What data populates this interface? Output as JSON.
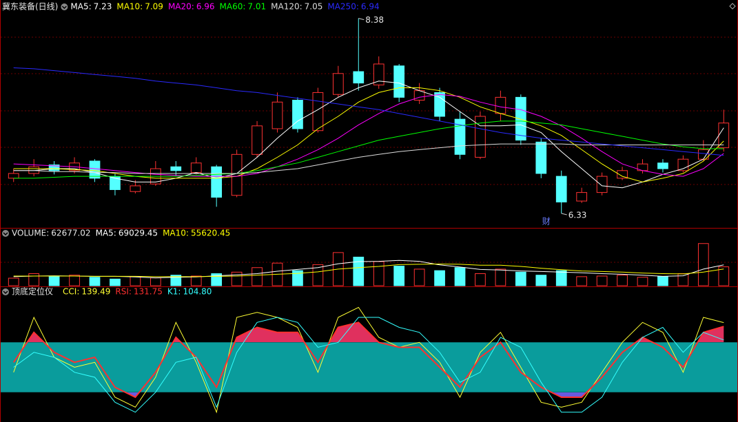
{
  "chart_data": [
    {
      "type": "candlestick",
      "title": "冀东装备(日线)",
      "marker": "财",
      "ylim": [
        6.2,
        8.5
      ],
      "up_color": "#ff3232",
      "down_color": "#54ffff",
      "open": [
        6.7,
        6.75,
        6.84,
        6.78,
        6.88,
        6.72,
        6.56,
        6.64,
        6.82,
        6.76,
        6.82,
        6.52,
        6.95,
        7.22,
        7.52,
        7.2,
        7.58,
        7.82,
        7.68,
        7.88,
        7.52,
        7.6,
        7.32,
        6.92,
        7.38,
        7.55,
        7.08,
        6.72,
        6.46,
        6.55,
        6.7,
        6.78,
        6.86,
        6.78,
        6.9,
        7.02
      ],
      "high": [
        6.8,
        6.9,
        6.88,
        6.92,
        6.9,
        6.75,
        6.68,
        6.88,
        6.88,
        6.92,
        6.84,
        7.0,
        7.3,
        7.6,
        7.55,
        7.65,
        7.88,
        8.38,
        7.98,
        7.9,
        7.7,
        7.65,
        7.4,
        7.4,
        7.62,
        7.58,
        7.12,
        6.78,
        6.6,
        6.76,
        6.82,
        6.9,
        6.9,
        6.94,
        7.1,
        7.42
      ],
      "low": [
        6.66,
        6.72,
        6.74,
        6.75,
        6.66,
        6.52,
        6.54,
        6.62,
        6.72,
        6.74,
        6.4,
        6.5,
        6.92,
        7.18,
        7.18,
        7.18,
        7.55,
        7.62,
        7.64,
        7.5,
        7.48,
        7.3,
        6.9,
        6.9,
        7.3,
        7.05,
        6.7,
        6.33,
        6.44,
        6.52,
        6.68,
        6.75,
        6.76,
        6.76,
        6.88,
        6.98
      ],
      "close": [
        6.75,
        6.82,
        6.78,
        6.86,
        6.7,
        6.58,
        6.62,
        6.8,
        6.78,
        6.86,
        6.5,
        6.95,
        7.25,
        7.5,
        7.22,
        7.6,
        7.8,
        7.7,
        7.9,
        7.55,
        7.62,
        7.35,
        6.95,
        7.35,
        7.55,
        7.1,
        6.75,
        6.45,
        6.55,
        6.72,
        6.78,
        6.85,
        6.8,
        6.9,
        7.0,
        7.28
      ],
      "series": [
        {
          "name": "MA5:",
          "color": "#ffffff",
          "values": [
            6.78,
            6.78,
            6.8,
            6.8,
            6.76,
            6.7,
            6.66,
            6.66,
            6.7,
            6.76,
            6.7,
            6.75,
            6.92,
            7.12,
            7.3,
            7.42,
            7.55,
            7.65,
            7.72,
            7.7,
            7.62,
            7.55,
            7.4,
            7.25,
            7.25,
            7.26,
            7.18,
            6.98,
            6.8,
            6.62,
            6.6,
            6.66,
            6.74,
            6.8,
            6.9,
            7.23
          ]
        },
        {
          "name": "MA10:",
          "color": "#ffff00",
          "values": [
            6.8,
            6.8,
            6.8,
            6.79,
            6.78,
            6.75,
            6.72,
            6.7,
            6.7,
            6.7,
            6.7,
            6.72,
            6.8,
            6.92,
            7.05,
            7.22,
            7.35,
            7.5,
            7.6,
            7.65,
            7.65,
            7.62,
            7.55,
            7.45,
            7.38,
            7.32,
            7.25,
            7.15,
            7.0,
            6.85,
            6.72,
            6.66,
            6.7,
            6.75,
            6.88,
            7.09
          ]
        },
        {
          "name": "MA20:",
          "color": "#ff00ff",
          "values": [
            6.85,
            6.84,
            6.83,
            6.82,
            6.8,
            6.78,
            6.76,
            6.74,
            6.73,
            6.72,
            6.72,
            6.72,
            6.75,
            6.82,
            6.9,
            7.0,
            7.12,
            7.26,
            7.38,
            7.48,
            7.55,
            7.58,
            7.56,
            7.5,
            7.45,
            7.42,
            7.35,
            7.25,
            7.12,
            6.98,
            6.85,
            6.78,
            6.74,
            6.72,
            6.8,
            6.96
          ]
        },
        {
          "name": "MA60:",
          "color": "#00ff00",
          "values": [
            6.7,
            6.7,
            6.71,
            6.72,
            6.72,
            6.72,
            6.72,
            6.72,
            6.72,
            6.73,
            6.74,
            6.75,
            6.78,
            6.82,
            6.86,
            6.92,
            6.98,
            7.04,
            7.1,
            7.14,
            7.18,
            7.22,
            7.25,
            7.28,
            7.3,
            7.3,
            7.28,
            7.26,
            7.22,
            7.18,
            7.14,
            7.1,
            7.06,
            7.03,
            7.01,
            7.01
          ]
        },
        {
          "name": "MA120:",
          "color": "#dddddd",
          "values": [
            6.78,
            6.78,
            6.77,
            6.77,
            6.76,
            6.76,
            6.75,
            6.75,
            6.75,
            6.75,
            6.75,
            6.75,
            6.76,
            6.78,
            6.8,
            6.84,
            6.88,
            6.92,
            6.95,
            6.98,
            7.0,
            7.02,
            7.04,
            7.05,
            7.06,
            7.06,
            7.06,
            7.06,
            7.05,
            7.05,
            7.05,
            7.05,
            7.05,
            7.05,
            7.05,
            7.05
          ]
        },
        {
          "name": "MA250:",
          "color": "#2a2aff",
          "values": [
            7.86,
            7.85,
            7.83,
            7.81,
            7.79,
            7.77,
            7.75,
            7.72,
            7.7,
            7.68,
            7.65,
            7.62,
            7.6,
            7.57,
            7.54,
            7.51,
            7.48,
            7.45,
            7.42,
            7.38,
            7.34,
            7.3,
            7.26,
            7.22,
            7.18,
            7.15,
            7.12,
            7.1,
            7.08,
            7.06,
            7.04,
            7.02,
            7.0,
            6.98,
            6.96,
            6.94
          ]
        }
      ]
    },
    {
      "type": "bar",
      "ylim": [
        0,
        160000
      ],
      "series": [
        {
          "name": "VOLUME:",
          "kind": "bar",
          "values": [
            25000,
            40000,
            30000,
            35000,
            28000,
            22000,
            30000,
            26000,
            35000,
            32000,
            40000,
            45000,
            60000,
            75000,
            50000,
            70000,
            110000,
            95000,
            80000,
            65000,
            55000,
            50000,
            60000,
            40000,
            55000,
            45000,
            35000,
            50000,
            30000,
            32000,
            35000,
            28000,
            30000,
            40000,
            140000,
            62677.02
          ]
        },
        {
          "name": "MA5:",
          "color": "#ffffff",
          "values": [
            30000,
            32000,
            33000,
            32000,
            31000,
            31000,
            29000,
            26000,
            28000,
            29000,
            33000,
            36000,
            40000,
            48000,
            54000,
            60000,
            73000,
            80000,
            81000,
            84000,
            81000,
            69000,
            62000,
            54000,
            52000,
            49000,
            47000,
            45000,
            43000,
            40000,
            38000,
            35000,
            31000,
            33000,
            55000,
            69029.45
          ]
        },
        {
          "name": "MA10:",
          "color": "#ffff00",
          "values": [
            32000,
            32000,
            32000,
            32000,
            31000,
            31000,
            31000,
            30000,
            30000,
            30000,
            31000,
            32000,
            35000,
            38000,
            41000,
            46000,
            55000,
            60000,
            64000,
            70000,
            71000,
            72000,
            71000,
            68000,
            68000,
            64000,
            58000,
            53000,
            49000,
            47000,
            45000,
            42000,
            40000,
            39000,
            45000,
            55620.45
          ]
        }
      ]
    },
    {
      "type": "line",
      "title": "顶底定位仪",
      "ylim": [
        -50,
        190
      ],
      "band": [
        0,
        100
      ],
      "band_color": "#0a9c9c",
      "fill_above": "#e0305e",
      "fill_below": "#6a5adf",
      "series": [
        {
          "name": "CCI:",
          "color": "#ffff33",
          "values": [
            40,
            150,
            70,
            50,
            60,
            -10,
            -30,
            30,
            140,
            60,
            -40,
            150,
            160,
            150,
            130,
            40,
            150,
            170,
            110,
            90,
            100,
            60,
            -10,
            80,
            120,
            50,
            -20,
            -30,
            -20,
            40,
            100,
            140,
            120,
            40,
            150,
            139.49
          ]
        },
        {
          "name": "RSI:",
          "color": "#ff3030",
          "fill": true,
          "values": [
            60,
            120,
            80,
            60,
            70,
            10,
            -10,
            40,
            110,
            70,
            10,
            110,
            130,
            120,
            120,
            60,
            130,
            140,
            100,
            90,
            90,
            50,
            10,
            70,
            100,
            40,
            10,
            -10,
            -10,
            30,
            80,
            110,
            90,
            50,
            120,
            131.75
          ]
        },
        {
          "name": "K1:",
          "color": "#33ffff",
          "values": [
            50,
            80,
            70,
            40,
            30,
            -20,
            -40,
            0,
            60,
            70,
            -30,
            80,
            140,
            150,
            140,
            90,
            100,
            150,
            150,
            130,
            120,
            80,
            20,
            40,
            110,
            90,
            20,
            -40,
            -40,
            -10,
            60,
            110,
            130,
            80,
            120,
            104.8
          ],
          "value_labels": [
            null,
            null,
            null,
            null,
            null,
            null,
            null,
            null,
            null,
            null,
            null,
            null,
            null,
            null,
            null,
            null,
            null,
            null,
            null,
            null,
            null,
            null,
            null,
            null,
            null,
            null,
            null,
            null,
            null,
            null,
            null,
            null,
            null,
            null,
            null,
            "104.80"
          ]
        }
      ]
    }
  ]
}
